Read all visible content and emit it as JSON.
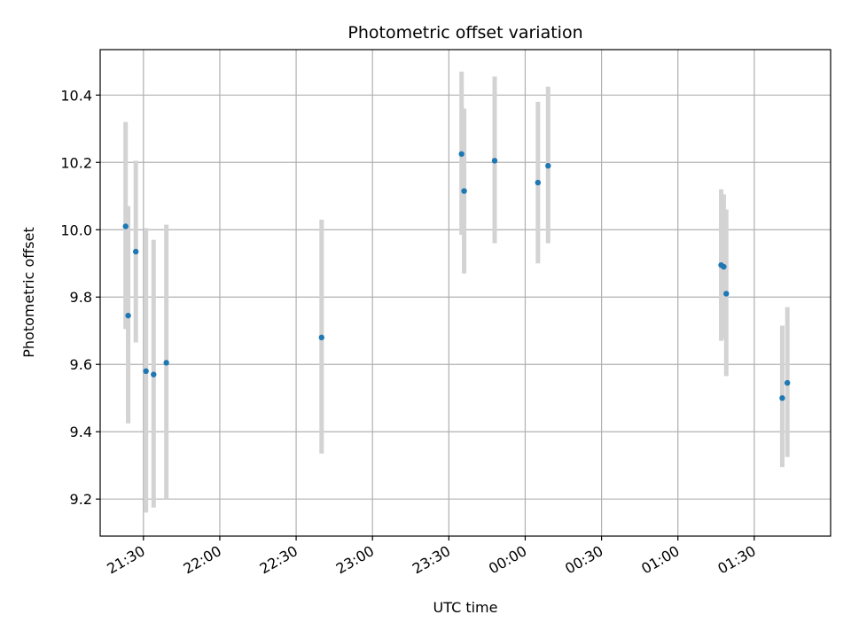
{
  "chart_data": {
    "type": "scatter",
    "title": "Photometric offset variation",
    "xlabel": "UTC time",
    "ylabel": "Photometric offset",
    "xlim": [
      "21:13",
      "02:00"
    ],
    "ylim": [
      9.09,
      10.535
    ],
    "grid": true,
    "x_ticks": [
      "21:30",
      "22:00",
      "22:30",
      "23:00",
      "23:30",
      "00:00",
      "00:30",
      "01:00",
      "01:30"
    ],
    "y_ticks": [
      "9.2",
      "9.4",
      "9.6",
      "9.8",
      "10.0",
      "10.2",
      "10.4"
    ],
    "series": [
      {
        "marker_color": "#1f77b4",
        "errorbar_color": "#d3d3d3",
        "points": [
          {
            "x": "21:23",
            "y": 10.01,
            "yerr_low": 9.705,
            "yerr_high": 10.32
          },
          {
            "x": "21:24",
            "y": 9.745,
            "yerr_low": 9.425,
            "yerr_high": 10.07
          },
          {
            "x": "21:27",
            "y": 9.935,
            "yerr_low": 9.665,
            "yerr_high": 10.205
          },
          {
            "x": "21:31",
            "y": 9.58,
            "yerr_low": 9.16,
            "yerr_high": 10.005
          },
          {
            "x": "21:34",
            "y": 9.57,
            "yerr_low": 9.175,
            "yerr_high": 9.97
          },
          {
            "x": "21:39",
            "y": 9.605,
            "yerr_low": 9.2,
            "yerr_high": 10.015
          },
          {
            "x": "22:40",
            "y": 9.68,
            "yerr_low": 9.335,
            "yerr_high": 10.03
          },
          {
            "x": "23:35",
            "y": 10.225,
            "yerr_low": 9.985,
            "yerr_high": 10.47
          },
          {
            "x": "23:36",
            "y": 10.115,
            "yerr_low": 9.87,
            "yerr_high": 10.36
          },
          {
            "x": "23:48",
            "y": 10.205,
            "yerr_low": 9.96,
            "yerr_high": 10.455
          },
          {
            "x": "00:05",
            "y": 10.14,
            "yerr_low": 9.9,
            "yerr_high": 10.38
          },
          {
            "x": "00:09",
            "y": 10.19,
            "yerr_low": 9.96,
            "yerr_high": 10.425
          },
          {
            "x": "01:17",
            "y": 9.895,
            "yerr_low": 9.67,
            "yerr_high": 10.12
          },
          {
            "x": "01:18",
            "y": 9.89,
            "yerr_low": 9.675,
            "yerr_high": 10.105
          },
          {
            "x": "01:19",
            "y": 9.81,
            "yerr_low": 9.565,
            "yerr_high": 10.06
          },
          {
            "x": "01:41",
            "y": 9.5,
            "yerr_low": 9.295,
            "yerr_high": 9.715
          },
          {
            "x": "01:43",
            "y": 9.545,
            "yerr_low": 9.325,
            "yerr_high": 9.77
          }
        ]
      }
    ]
  }
}
